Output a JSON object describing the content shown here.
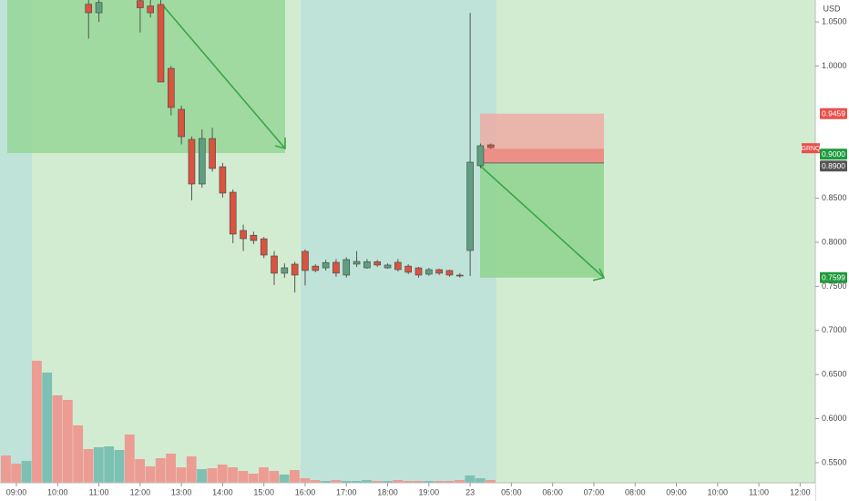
{
  "chart_data": {
    "type": "candlestick",
    "symbol": "GRNQ",
    "axis_label": "USD",
    "up_color": "#5f9e80",
    "down_color": "#d9533f",
    "xlim": [
      -1.59,
      77.47
    ],
    "ylim": [
      0.5169,
      1.0748
    ],
    "x": [
      7,
      8,
      12,
      13,
      14,
      15,
      16,
      17,
      18,
      19,
      20,
      21,
      22,
      23,
      24,
      25,
      26,
      27,
      28,
      29,
      30,
      31,
      32,
      33,
      34,
      35,
      36,
      37,
      38,
      39,
      40,
      41,
      42,
      43,
      44,
      45,
      46
    ],
    "open": [
      1.07,
      1.0603,
      1.074,
      1.068,
      1.0697,
      0.9973,
      0.9508,
      0.9167,
      0.8661,
      0.9177,
      0.8857,
      0.8568,
      0.8134,
      0.808,
      0.804,
      0.7845,
      0.7649,
      0.7752,
      0.7897,
      0.773,
      0.771,
      0.7773,
      0.7628,
      0.7752,
      0.771,
      0.778,
      0.771,
      0.7773,
      0.773,
      0.771,
      0.7638,
      0.769,
      0.768,
      0.7628,
      0.7907,
      0.8868,
      0.9105
    ],
    "high": [
      1.075,
      1.075,
      1.075,
      1.075,
      1.075,
      1.0,
      0.955,
      0.92,
      0.928,
      0.93,
      0.89,
      0.86,
      0.82,
      0.812,
      0.806,
      0.79,
      0.776,
      0.778,
      0.792,
      0.775,
      0.78,
      0.781,
      0.783,
      0.79,
      0.781,
      0.78,
      0.776,
      0.781,
      0.775,
      0.772,
      0.771,
      0.77,
      0.769,
      0.765,
      1.0602,
      0.912,
      0.912
    ],
    "low": [
      1.031,
      1.05,
      1.038,
      1.055,
      0.9818,
      0.944,
      0.911,
      0.8475,
      0.862,
      0.88,
      0.8507,
      0.799,
      0.79,
      0.798,
      0.782,
      0.7515,
      0.7598,
      0.743,
      0.751,
      0.766,
      0.768,
      0.761,
      0.76,
      0.772,
      0.77,
      0.772,
      0.77,
      0.767,
      0.764,
      0.76,
      0.762,
      0.763,
      0.761,
      0.76,
      0.7618,
      0.884,
      0.906
    ],
    "close": [
      1.0603,
      1.072,
      1.066,
      1.0603,
      0.9818,
      0.9529,
      0.9198,
      0.8661,
      0.9177,
      0.8837,
      0.8558,
      0.8093,
      0.8041,
      0.802,
      0.7855,
      0.7649,
      0.7711,
      0.7628,
      0.768,
      0.768,
      0.777,
      0.765,
      0.7804,
      0.7783,
      0.778,
      0.7742,
      0.7742,
      0.769,
      0.766,
      0.7628,
      0.769,
      0.7649,
      0.7628,
      0.7618,
      0.8909,
      0.9095,
      0.9074
    ],
    "volume": {
      "x": [
        -1,
        0,
        1,
        2,
        3,
        4,
        5,
        6,
        7,
        8,
        9,
        10,
        11,
        12,
        13,
        14,
        15,
        16,
        17,
        18,
        19,
        20,
        21,
        22,
        23,
        24,
        25,
        26,
        27,
        28,
        29,
        30,
        31,
        32,
        33,
        34,
        35,
        36,
        37,
        38,
        39,
        40,
        41,
        42,
        43,
        44,
        45,
        46
      ],
      "values": [
        30,
        21,
        24,
        134,
        121,
        96,
        91,
        63,
        37,
        39,
        40,
        36,
        53,
        26,
        18,
        27,
        32,
        17,
        29,
        15,
        16,
        20,
        17,
        13,
        10,
        17,
        13,
        9,
        14,
        5,
        3,
        2,
        3,
        2,
        2,
        3,
        2,
        2,
        3,
        2,
        2,
        2,
        2,
        2,
        3,
        8,
        5,
        3
      ],
      "colors": [
        "#ec9c92",
        "#ec9c92",
        "#7dc0b4",
        "#ec9c92",
        "#7dc0b4",
        "#ec9c92",
        "#ec9c92",
        "#ec9c92",
        "#ec9c92",
        "#7dc0b4",
        "#7dc0b4",
        "#7dc0b4",
        "#ec9c92",
        "#ec9c92",
        "#ec9c92",
        "#ec9c92",
        "#ec9c92",
        "#ec9c92",
        "#ec9c92",
        "#7dc0b4",
        "#ec9c92",
        "#ec9c92",
        "#ec9c92",
        "#ec9c92",
        "#ec9c92",
        "#ec9c92",
        "#ec9c92",
        "#7dc0b4",
        "#ec9c92",
        "#ec9c92",
        "#ec9c92",
        "#7dc0b4",
        "#ec9c92",
        "#7dc0b4",
        "#7dc0b4",
        "#7dc0b4",
        "#ec9c92",
        "#7dc0b4",
        "#ec9c92",
        "#ec9c92",
        "#ec9c92",
        "#7dc0b4",
        "#ec9c92",
        "#ec9c92",
        "#ec9c92",
        "#7dc0b4",
        "#7dc0b4",
        "#ec9c92"
      ]
    },
    "xticks": [
      {
        "value": 0,
        "label": "09:00"
      },
      {
        "value": 4,
        "label": "10:00"
      },
      {
        "value": 8,
        "label": "11:00"
      },
      {
        "value": 12,
        "label": "12:00"
      },
      {
        "value": 16,
        "label": "13:00"
      },
      {
        "value": 20,
        "label": "14:00"
      },
      {
        "value": 24,
        "label": "15:00"
      },
      {
        "value": 28,
        "label": "16:00"
      },
      {
        "value": 32,
        "label": "17:00"
      },
      {
        "value": 36,
        "label": "18:00"
      },
      {
        "value": 40,
        "label": "19:00"
      },
      {
        "value": 44,
        "label": "23"
      },
      {
        "value": 48,
        "label": "05:00"
      },
      {
        "value": 52,
        "label": "06:00"
      },
      {
        "value": 56,
        "label": "07:00"
      },
      {
        "value": 60,
        "label": "08:00"
      },
      {
        "value": 64,
        "label": "09:00"
      },
      {
        "value": 68,
        "label": "10:00"
      },
      {
        "value": 72,
        "label": "11:00"
      },
      {
        "value": 76,
        "label": "12:00"
      }
    ],
    "yticks": [
      {
        "value": 0.55,
        "label": "0.5500"
      },
      {
        "value": 0.6,
        "label": "0.6000"
      },
      {
        "value": 0.65,
        "label": "0.6500"
      },
      {
        "value": 0.7,
        "label": "0.7000"
      },
      {
        "value": 0.75,
        "label": "0.7500"
      },
      {
        "value": 0.8,
        "label": "0.8000"
      },
      {
        "value": 0.85,
        "label": "0.8500"
      },
      {
        "value": 1.0,
        "label": "1.0000"
      },
      {
        "value": 1.05,
        "label": "1.0500"
      }
    ],
    "price_labels": [
      {
        "value": 0.9459,
        "label": "0.9459",
        "color": "#e8504a"
      },
      {
        "value": 0.9,
        "label": "0.9000",
        "color": "#1e9a3c"
      },
      {
        "value": 0.89,
        "label": "0.8900",
        "color": "#555555"
      },
      {
        "value": 0.7599,
        "label": "0.7599",
        "color": "#1e9a3c"
      }
    ]
  }
}
